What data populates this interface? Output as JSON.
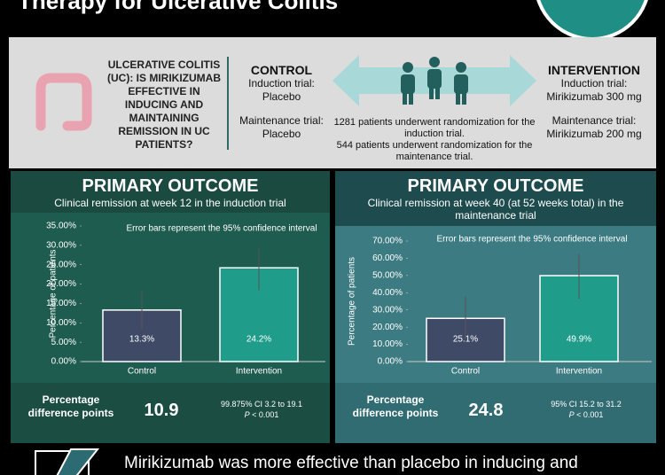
{
  "header": {
    "title": "Therapy for Ulcerative Colitis"
  },
  "question": "ULCERATIVE COLITIS (UC): IS MIRIKIZUMAB EFFECTIVE IN INDUCING AND MAINTAINING REMISSION IN UC PATIENTS?",
  "control": {
    "title": "CONTROL",
    "lines": [
      "Induction trial:",
      "Placebo",
      "Maintenance trial:",
      "Placebo"
    ]
  },
  "randomization": [
    "1281 patients underwent randomization for the induction trial.",
    "544 patients underwent randomization for the maintenance trial."
  ],
  "intervention": {
    "title": "INTERVENTION",
    "lines": [
      "Induction trial:",
      "Mirikizumab 300 mg",
      "Maintenance trial:",
      "Mirikizumab 200 mg"
    ]
  },
  "chart_data": [
    {
      "type": "bar",
      "title": "PRIMARY OUTCOME",
      "subtitle": "Clinical remission at week 12 in the induction trial",
      "note": "Error bars represent the 95% confidence interval",
      "y_label": "Percentage of patients",
      "categories": [
        "Control",
        "Intervention"
      ],
      "values": [
        13.3,
        24.2
      ],
      "value_labels": [
        "13.3%",
        "24.2%"
      ],
      "ci_low": [
        8.2,
        18.4
      ],
      "ci_high": [
        18.5,
        29.4
      ],
      "colors": [
        "#3e4a66",
        "#1f9c8a"
      ],
      "ylim": [
        0,
        35
      ],
      "yticks": [
        {
          "value": 0,
          "label": "0.00%"
        },
        {
          "value": 5,
          "label": "5.00%"
        },
        {
          "value": 10,
          "label": "10.00%"
        },
        {
          "value": 15,
          "label": "15.00%"
        },
        {
          "value": 20,
          "label": "20.00%"
        },
        {
          "value": 25,
          "label": "25.00%"
        },
        {
          "value": 30,
          "label": "30.00%"
        },
        {
          "value": 35,
          "label": "35.00%"
        }
      ],
      "difference_label": "Percentage difference points",
      "difference": 10.9,
      "difference_ci": "99.875% CI 3.2 to 19.1",
      "p_label": "P",
      "p_value": "< 0.001"
    },
    {
      "type": "bar",
      "title": "PRIMARY OUTCOME",
      "subtitle": "Clinical remission at week 40 (at 52 weeks total) in the maintenance trial",
      "note": "Error bars represent the 95% confidence interval",
      "y_label": "Percentage of patients",
      "categories": [
        "Control",
        "Intervention"
      ],
      "values": [
        25.1,
        49.9
      ],
      "value_labels": [
        "25.1%",
        "49.9%"
      ],
      "ci_low": [
        13.0,
        36.5
      ],
      "ci_high": [
        37.6,
        62.3
      ],
      "colors": [
        "#3e4a66",
        "#1f9c8a"
      ],
      "ylim": [
        0,
        70
      ],
      "yticks": [
        {
          "value": 0,
          "label": "0.00%"
        },
        {
          "value": 10,
          "label": "10.00%"
        },
        {
          "value": 20,
          "label": "20.00%"
        },
        {
          "value": 30,
          "label": "30.00%"
        },
        {
          "value": 40,
          "label": "40.00%"
        },
        {
          "value": 50,
          "label": "50.00%"
        },
        {
          "value": 60,
          "label": "60.00%"
        },
        {
          "value": 70,
          "label": "70.00%"
        }
      ],
      "difference_label": "Percentage difference points",
      "difference": 24.8,
      "difference_ci": "95% CI 15.2 to 31.2",
      "p_label": "P",
      "p_value": "< 0.001"
    }
  ],
  "conclusion": "Mirikizumab was more effective than placebo in inducing and"
}
